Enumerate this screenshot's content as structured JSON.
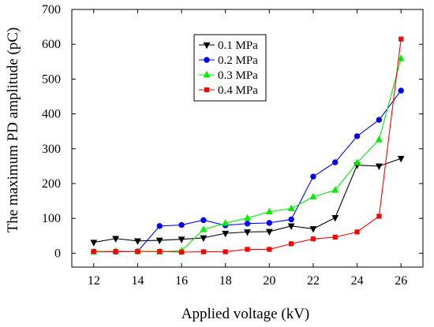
{
  "chart_data": {
    "type": "line",
    "xlabel": "Applied voltage (kV)",
    "ylabel": "The maximum PD amplitude (pC)",
    "xlim": [
      11,
      27
    ],
    "ylim": [
      -40,
      700
    ],
    "xticks": [
      12,
      14,
      16,
      18,
      20,
      22,
      24,
      26
    ],
    "yticks": [
      0,
      100,
      200,
      300,
      400,
      500,
      600,
      700
    ],
    "grid": false,
    "legend_position": "top-center",
    "x": [
      12,
      13,
      14,
      15,
      16,
      17,
      18,
      19,
      20,
      21,
      22,
      23,
      24,
      25,
      26
    ],
    "series": [
      {
        "name": "0.1 MPa",
        "color": "#000000",
        "marker": "triangle-down",
        "values": [
          31,
          42,
          35,
          37,
          40,
          44,
          57,
          61,
          62,
          78,
          70,
          102,
          253,
          250,
          272
        ]
      },
      {
        "name": "0.2 MPa",
        "color": "#0000ff",
        "marker": "circle",
        "values": [
          4,
          4,
          5,
          78,
          81,
          95,
          80,
          85,
          87,
          97,
          220,
          261,
          336,
          383,
          467
        ]
      },
      {
        "name": "0.3 MPa",
        "color": "#00ee00",
        "marker": "triangle-up",
        "values": [
          4,
          5,
          5,
          4,
          7,
          68,
          86,
          101,
          119,
          128,
          162,
          181,
          260,
          326,
          559
        ]
      },
      {
        "name": "0.4 MPa",
        "color": "#ff0000",
        "marker": "square",
        "values": [
          5,
          5,
          5,
          5,
          3,
          4,
          4,
          11,
          11,
          27,
          41,
          46,
          61,
          106,
          615
        ]
      }
    ]
  }
}
